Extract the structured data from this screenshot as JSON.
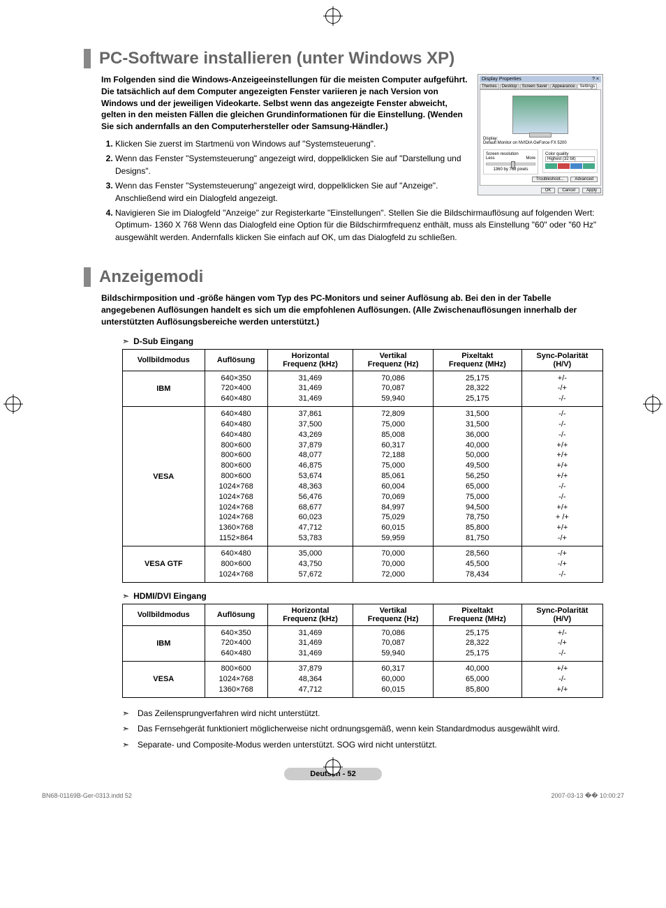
{
  "section1": {
    "title": "PC-Software installieren (unter Windows XP)",
    "intro": "Im Folgenden sind die Windows-Anzeigeeinstellungen für die meisten Computer aufgeführt. Die tatsächlich auf dem Computer angezeigten Fenster variieren je nach Version von Windows und der jeweiligen Videokarte. Selbst wenn das angezeigte Fenster abweicht, gelten in den meisten Fällen die gleichen Grundinformationen für die Einstellung. (Wenden Sie sich andernfalls an den Computerhersteller oder Samsung-Händler.)",
    "steps": [
      "Klicken Sie zuerst im Startmenü von Windows auf \"Systemsteuerung\".",
      "Wenn das Fenster \"Systemsteuerung\" angezeigt wird, doppelklicken Sie auf \"Darstellung und Designs\".",
      "Wenn das Fenster \"Systemsteuerung\" angezeigt wird, doppelklicken Sie auf \"Anzeige\". Anschließend wird ein Dialogfeld angezeigt.",
      "Navigieren Sie im Dialogfeld \"Anzeige\" zur Registerkarte \"Einstellungen\". Stellen Sie die Bildschirmauflösung auf folgenden Wert: Optimum- 1360 X 768 Wenn das Dialogfeld eine Option für die Bildschirmfrequenz enthält, muss als Einstellung \"60\" oder \"60 Hz\" ausgewählt werden. Andernfalls klicken Sie einfach auf OK, um das Dialogfeld zu schließen."
    ],
    "dialog": {
      "title": "Display Properties",
      "tabs": [
        "Themes",
        "Desktop",
        "Screen Saver",
        "Appearance",
        "Settings"
      ],
      "display_label": "Display:",
      "display_value": "Default Monitor on NVIDIA GeForce FX 5200",
      "res_label": "Screen resolution",
      "res_less": "Less",
      "res_more": "More",
      "res_value": "1360 by 768 pixels",
      "quality_label": "Color quality",
      "quality_value": "Highest (32 bit)",
      "btn_troubleshoot": "Troubleshoot...",
      "btn_advanced": "Advanced",
      "btn_ok": "OK",
      "btn_cancel": "Cancel",
      "btn_apply": "Apply"
    }
  },
  "section2": {
    "title": "Anzeigemodi",
    "intro": "Bildschirmposition und -größe hängen vom Typ des PC-Monitors und seiner Auflösung ab. Bei den in der Tabelle angegebenen Auflösungen handelt es sich um die empfohlenen Auflösungen. (Alle Zwischenauflösungen innerhalb der unterstützten Auflösungsbereiche werden unterstützt.)",
    "table_headers": [
      "Vollbildmodus",
      "Auflösung",
      "Horizontal\nFrequenz (kHz)",
      "Vertikal\nFrequenz (Hz)",
      "Pixeltakt\nFrequenz (MHz)",
      "Sync-Polarität\n(H/V)"
    ],
    "dsub_label": "D-Sub Eingang",
    "dsub_groups": [
      {
        "mode": "IBM",
        "rows": [
          [
            "640×350",
            "31,469",
            "70,086",
            "25,175",
            "+/-"
          ],
          [
            "720×400",
            "31,469",
            "70,087",
            "28,322",
            "-/+"
          ],
          [
            "640×480",
            "31,469",
            "59,940",
            "25,175",
            "-/-"
          ]
        ]
      },
      {
        "mode": "VESA",
        "rows": [
          [
            "640×480",
            "37,861",
            "72,809",
            "31,500",
            "-/-"
          ],
          [
            "640×480",
            "37,500",
            "75,000",
            "31,500",
            "-/-"
          ],
          [
            "640×480",
            "43,269",
            "85,008",
            "36,000",
            "-/-"
          ],
          [
            "800×600",
            "37,879",
            "60,317",
            "40,000",
            "+/+"
          ],
          [
            "800×600",
            "48,077",
            "72,188",
            "50,000",
            "+/+"
          ],
          [
            "800×600",
            "46,875",
            "75,000",
            "49,500",
            "+/+"
          ],
          [
            "800×600",
            "53,674",
            "85,061",
            "56,250",
            "+/+"
          ],
          [
            "1024×768",
            "48,363",
            "60,004",
            "65,000",
            "-/-"
          ],
          [
            "1024×768",
            "56,476",
            "70,069",
            "75,000",
            "-/-"
          ],
          [
            "1024×768",
            "68,677",
            "84,997",
            "94,500",
            "+/+"
          ],
          [
            "1024×768",
            "60,023",
            "75,029",
            "78,750",
            "+ /+"
          ],
          [
            "1360×768",
            "47,712",
            "60,015",
            "85,800",
            "+/+"
          ],
          [
            "1152×864",
            "53,783",
            "59,959",
            "81,750",
            "-/+"
          ]
        ]
      },
      {
        "mode": "VESA GTF",
        "rows": [
          [
            "640×480",
            "35,000",
            "70,000",
            "28,560",
            "-/+"
          ],
          [
            "800×600",
            "43,750",
            "70,000",
            "45,500",
            "-/+"
          ],
          [
            "1024×768",
            "57,672",
            "72,000",
            "78,434",
            "-/-"
          ]
        ]
      }
    ],
    "hdmi_label": "HDMI/DVI Eingang",
    "hdmi_groups": [
      {
        "mode": "IBM",
        "rows": [
          [
            "640×350",
            "31,469",
            "70,086",
            "25,175",
            "+/-"
          ],
          [
            "720×400",
            "31,469",
            "70,087",
            "28,322",
            "-/+"
          ],
          [
            "640×480",
            "31,469",
            "59,940",
            "25,175",
            "-/-"
          ]
        ]
      },
      {
        "mode": "VESA",
        "rows": [
          [
            "800×600",
            "37,879",
            "60,317",
            "40,000",
            "+/+"
          ],
          [
            "1024×768",
            "48,364",
            "60,000",
            "65,000",
            "-/-"
          ],
          [
            "1360×768",
            "47,712",
            "60,015",
            "85,800",
            "+/+"
          ]
        ]
      }
    ],
    "notes": [
      "Das Zeilensprungverfahren wird nicht unterstützt.",
      "Das Fernsehgerät funktioniert möglicherweise nicht ordnungsgemäß, wenn kein Standardmodus ausgewählt wird.",
      "Separate- und Composite-Modus werden unterstützt. SOG wird nicht unterstützt."
    ]
  },
  "page_badge": "Deutsch - 52",
  "footer": {
    "left": "BN68-01169B-Ger-0313.indd   52",
    "right": "2007-03-13   �� 10:00:27"
  },
  "style": {
    "title_color": "#666666",
    "accent_bar": "#888888",
    "badge_bg": "#cccccc",
    "border": "#000000"
  }
}
